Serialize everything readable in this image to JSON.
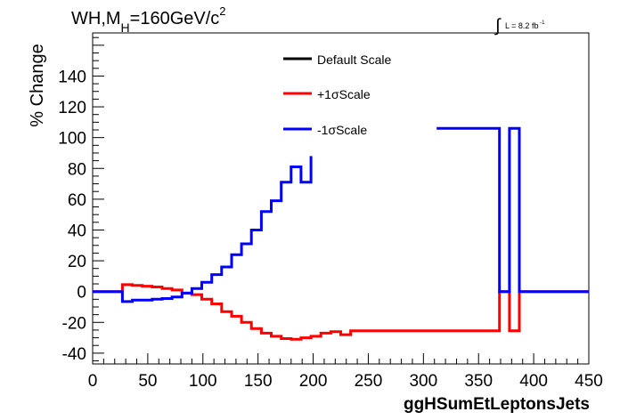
{
  "chart_data": {
    "type": "line",
    "title_main": "WH,M",
    "title_sub": "H",
    "title_rest": "=160GeV/c",
    "title_sup": "2",
    "lumi_symbol": "∫",
    "lumi_text": "L = 8.2 fb",
    "lumi_sup": "-1",
    "xlabel": "ggHSumEtLeptonsJets",
    "ylabel": "% Change",
    "xlim": [
      0,
      450
    ],
    "ylim": [
      -47,
      168
    ],
    "xticks": [
      0,
      50,
      100,
      150,
      200,
      250,
      300,
      350,
      400,
      450
    ],
    "yticks": [
      -40,
      -20,
      0,
      20,
      40,
      60,
      80,
      100,
      120,
      140
    ],
    "grid": false,
    "legend_position": "top-center",
    "series": [
      {
        "name": "Default Scale",
        "color": "#000000",
        "segments": []
      },
      {
        "name": "+1σScale",
        "color": "#ff0000",
        "segments": [
          [
            [
              0,
              0
            ],
            [
              27,
              0
            ],
            [
              27,
              4.5
            ],
            [
              36,
              4.5
            ],
            [
              36,
              4
            ],
            [
              45,
              4
            ],
            [
              45,
              3.5
            ],
            [
              54,
              3.5
            ],
            [
              54,
              3
            ],
            [
              63,
              3
            ],
            [
              63,
              2
            ],
            [
              72,
              2
            ],
            [
              72,
              1
            ],
            [
              81,
              1
            ],
            [
              81,
              -1
            ],
            [
              90,
              -1
            ],
            [
              90,
              -2
            ],
            [
              99,
              -2
            ],
            [
              99,
              -5
            ],
            [
              108,
              -5
            ],
            [
              108,
              -8
            ],
            [
              117,
              -8
            ],
            [
              117,
              -13
            ],
            [
              126,
              -13
            ],
            [
              126,
              -16
            ],
            [
              135,
              -16
            ],
            [
              135,
              -20
            ],
            [
              144,
              -20
            ],
            [
              144,
              -24
            ],
            [
              153,
              -24
            ],
            [
              153,
              -27
            ],
            [
              162,
              -27
            ],
            [
              162,
              -29
            ],
            [
              171,
              -29
            ],
            [
              171,
              -30.5
            ],
            [
              180,
              -30.5
            ],
            [
              180,
              -31
            ],
            [
              189,
              -31
            ],
            [
              189,
              -30
            ],
            [
              198,
              -30
            ],
            [
              198,
              -29
            ],
            [
              207,
              -29
            ],
            [
              207,
              -27
            ],
            [
              216,
              -27
            ],
            [
              216,
              -26
            ],
            [
              225,
              -26
            ],
            [
              225,
              -28
            ],
            [
              234,
              -28
            ],
            [
              234,
              -25.5
            ],
            [
              369,
              -25.5
            ],
            [
              369,
              0
            ],
            [
              378,
              0
            ],
            [
              378,
              -25.5
            ],
            [
              387,
              -25.5
            ],
            [
              387,
              0
            ],
            [
              450,
              0
            ]
          ]
        ]
      },
      {
        "name": "-1σScale",
        "color": "#0000ff",
        "segments": [
          [
            [
              0,
              0
            ],
            [
              27,
              0
            ],
            [
              27,
              -6.5
            ],
            [
              36,
              -6.5
            ],
            [
              36,
              -5.5
            ],
            [
              54,
              -5.5
            ],
            [
              54,
              -5
            ],
            [
              63,
              -5
            ],
            [
              63,
              -4.5
            ],
            [
              72,
              -4.5
            ],
            [
              72,
              -3.5
            ],
            [
              81,
              -3.5
            ],
            [
              81,
              -1
            ],
            [
              90,
              -1
            ],
            [
              90,
              2
            ],
            [
              99,
              2
            ],
            [
              99,
              6
            ],
            [
              108,
              6
            ],
            [
              108,
              11
            ],
            [
              117,
              11
            ],
            [
              117,
              16
            ],
            [
              126,
              16
            ],
            [
              126,
              24
            ],
            [
              135,
              24
            ],
            [
              135,
              31
            ],
            [
              144,
              31
            ],
            [
              144,
              40
            ],
            [
              153,
              40
            ],
            [
              153,
              52
            ],
            [
              162,
              52
            ],
            [
              162,
              59
            ],
            [
              171,
              59
            ],
            [
              171,
              71
            ],
            [
              180,
              71
            ],
            [
              180,
              81
            ],
            [
              189,
              81
            ],
            [
              189,
              71
            ],
            [
              198,
              71
            ],
            [
              198,
              88
            ]
          ],
          [
            [
              312,
              106
            ],
            [
              369,
              106
            ],
            [
              369,
              0
            ],
            [
              378,
              0
            ],
            [
              378,
              106
            ],
            [
              387,
              106
            ],
            [
              387,
              0
            ],
            [
              450,
              0
            ]
          ]
        ]
      }
    ]
  }
}
